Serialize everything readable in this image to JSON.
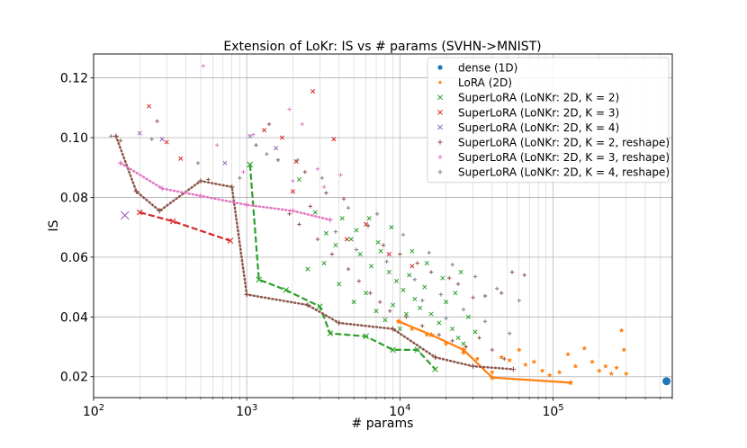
{
  "chart_data": {
    "type": "scatter",
    "title": "Extension of LoKr: IS vs # params (SVHN->MNIST)",
    "xlabel": "# params",
    "ylabel": "IS",
    "xscale": "log",
    "xlim": [
      100,
      600000
    ],
    "ylim": [
      0.013,
      0.128
    ],
    "grid": true,
    "legend_position": "top-right",
    "x_ticks": [
      {
        "value": 100,
        "label": "10^2"
      },
      {
        "value": 1000,
        "label": "10^3"
      },
      {
        "value": 10000,
        "label": "10^4"
      },
      {
        "value": 100000,
        "label": "10^5"
      }
    ],
    "y_ticks": [
      {
        "value": 0.02,
        "label": "0.02"
      },
      {
        "value": 0.04,
        "label": "0.04"
      },
      {
        "value": 0.06,
        "label": "0.06"
      },
      {
        "value": 0.08,
        "label": "0.08"
      },
      {
        "value": 0.1,
        "label": "0.10"
      },
      {
        "value": 0.12,
        "label": "0.12"
      }
    ],
    "series": [
      {
        "name": "dense (1D)",
        "color": "#1f77b4",
        "marker": "circle",
        "points": [
          [
            550000,
            0.0185
          ]
        ]
      },
      {
        "name": "LoRA (2D)",
        "color": "#ff7f0e",
        "marker": "star",
        "points": [
          [
            9800,
            0.0385
          ],
          [
            12000,
            0.036
          ],
          [
            15000,
            0.034
          ],
          [
            20000,
            0.031
          ],
          [
            26000,
            0.028
          ],
          [
            32000,
            0.026
          ],
          [
            40000,
            0.0215
          ],
          [
            46000,
            0.0265
          ],
          [
            52000,
            0.0255
          ],
          [
            60000,
            0.029
          ],
          [
            66000,
            0.024
          ],
          [
            75000,
            0.025
          ],
          [
            85000,
            0.022
          ],
          [
            95000,
            0.0205
          ],
          [
            110000,
            0.0215
          ],
          [
            125000,
            0.0275
          ],
          [
            140000,
            0.0235
          ],
          [
            160000,
            0.0295
          ],
          [
            180000,
            0.025
          ],
          [
            200000,
            0.022
          ],
          [
            220000,
            0.0235
          ],
          [
            240000,
            0.021
          ],
          [
            260000,
            0.023
          ],
          [
            280000,
            0.0355
          ],
          [
            290000,
            0.029
          ],
          [
            300000,
            0.021
          ]
        ],
        "frontier": [
          [
            9800,
            0.0385
          ],
          [
            16000,
            0.034
          ],
          [
            26000,
            0.029
          ],
          [
            40000,
            0.0197
          ],
          [
            130000,
            0.018
          ]
        ]
      },
      {
        "name": "SuperLoRA (LoNKr: 2D, K = 2)",
        "color": "#2ca02c",
        "marker": "x",
        "points": [
          [
            1050,
            0.091
          ],
          [
            1200,
            0.0525
          ],
          [
            1800,
            0.049
          ],
          [
            3000,
            0.0435
          ],
          [
            3500,
            0.0345
          ],
          [
            6000,
            0.0335
          ],
          [
            9000,
            0.029
          ],
          [
            13000,
            0.029
          ],
          [
            17000,
            0.0225
          ],
          [
            2200,
            0.086
          ],
          [
            2800,
            0.075
          ],
          [
            3300,
            0.068
          ],
          [
            4200,
            0.073
          ],
          [
            4800,
            0.066
          ],
          [
            5500,
            0.061
          ],
          [
            6500,
            0.057
          ],
          [
            7500,
            0.062
          ],
          [
            8500,
            0.055
          ],
          [
            9500,
            0.052
          ],
          [
            10500,
            0.049
          ],
          [
            11500,
            0.054
          ],
          [
            12500,
            0.046
          ],
          [
            13500,
            0.043
          ],
          [
            14500,
            0.05
          ],
          [
            16000,
            0.041
          ],
          [
            18000,
            0.038
          ],
          [
            20000,
            0.045
          ],
          [
            22000,
            0.036
          ],
          [
            24000,
            0.033
          ],
          [
            26000,
            0.031
          ],
          [
            28000,
            0.04
          ],
          [
            31000,
            0.035
          ],
          [
            4000,
            0.051
          ],
          [
            5000,
            0.045
          ],
          [
            6000,
            0.048
          ],
          [
            7000,
            0.042
          ],
          [
            8000,
            0.039
          ],
          [
            9000,
            0.044
          ],
          [
            10000,
            0.036
          ],
          [
            11000,
            0.041
          ],
          [
            2500,
            0.056
          ],
          [
            3200,
            0.058
          ],
          [
            3800,
            0.064
          ],
          [
            5200,
            0.069
          ],
          [
            6300,
            0.073
          ],
          [
            7200,
            0.065
          ],
          [
            15000,
            0.058
          ],
          [
            19000,
            0.053
          ],
          [
            23000,
            0.048
          ],
          [
            25000,
            0.055
          ],
          [
            12000,
            0.062
          ],
          [
            8800,
            0.07
          ]
        ],
        "frontier": [
          [
            1050,
            0.091
          ],
          [
            1200,
            0.0525
          ],
          [
            1800,
            0.049
          ],
          [
            3000,
            0.0435
          ],
          [
            3500,
            0.0345
          ],
          [
            6000,
            0.0335
          ],
          [
            9000,
            0.029
          ],
          [
            13000,
            0.029
          ],
          [
            17000,
            0.0225
          ]
        ]
      },
      {
        "name": "SuperLoRA (LoNKr: 2D, K = 3)",
        "color": "#d62728",
        "marker": "x",
        "points": [
          [
            200,
            0.075
          ],
          [
            330,
            0.072
          ],
          [
            780,
            0.0655
          ],
          [
            230,
            0.1105
          ],
          [
            300,
            0.0985
          ],
          [
            370,
            0.093
          ],
          [
            1300,
            0.1025
          ],
          [
            1700,
            0.1
          ],
          [
            2100,
            0.092
          ],
          [
            2700,
            0.1155
          ],
          [
            3700,
            0.0995
          ],
          [
            2000,
            0.082
          ],
          [
            6000,
            0.071
          ],
          [
            4500,
            0.066
          ],
          [
            8500,
            0.061
          ],
          [
            12000,
            0.057
          ]
        ],
        "frontier": [
          [
            200,
            0.075
          ],
          [
            330,
            0.072
          ],
          [
            780,
            0.0655
          ]
        ]
      },
      {
        "name": "SuperLoRA (LoNKr: 2D, K = 4)",
        "color": "#9467bd",
        "marker": "x",
        "points": [
          [
            160,
            0.074
          ],
          [
            200,
            0.1015
          ],
          [
            280,
            0.0995
          ],
          [
            720,
            0.0915
          ],
          [
            1050,
            0.1005
          ],
          [
            1550,
            0.0965
          ]
        ]
      },
      {
        "name": "SuperLoRA (LoNKr: 2D, K = 2, reshape)",
        "color": "#8c564b",
        "marker": "plus",
        "points": [
          [
            140,
            0.1005
          ],
          [
            190,
            0.082
          ],
          [
            270,
            0.0755
          ],
          [
            500,
            0.0855
          ],
          [
            800,
            0.0835
          ],
          [
            1000,
            0.0475
          ],
          [
            2500,
            0.044
          ],
          [
            4000,
            0.038
          ],
          [
            9000,
            0.036
          ],
          [
            17000,
            0.0265
          ],
          [
            30000,
            0.0235
          ],
          [
            55000,
            0.0225
          ],
          [
            150,
            0.099
          ],
          [
            260,
            0.1055
          ],
          [
            560,
            0.086
          ],
          [
            1150,
            0.0975
          ],
          [
            1600,
            0.0925
          ],
          [
            2400,
            0.0885
          ],
          [
            3300,
            0.0815
          ],
          [
            4300,
            0.0795
          ],
          [
            6200,
            0.0705
          ],
          [
            7800,
            0.064
          ],
          [
            10000,
            0.061
          ],
          [
            13000,
            0.058
          ],
          [
            16000,
            0.055
          ],
          [
            21000,
            0.053
          ],
          [
            24000,
            0.051
          ],
          [
            30000,
            0.0465
          ],
          [
            36000,
            0.047
          ],
          [
            46000,
            0.048
          ],
          [
            54000,
            0.055
          ],
          [
            65000,
            0.054
          ],
          [
            2200,
            0.071
          ],
          [
            2900,
            0.066
          ],
          [
            3600,
            0.061
          ],
          [
            4600,
            0.056
          ],
          [
            5400,
            0.052
          ],
          [
            6400,
            0.048
          ],
          [
            7400,
            0.045
          ],
          [
            8600,
            0.042
          ],
          [
            11000,
            0.04
          ],
          [
            14000,
            0.037
          ],
          [
            18000,
            0.034
          ],
          [
            22000,
            0.032
          ],
          [
            27000,
            0.03
          ],
          [
            33000,
            0.033
          ],
          [
            40000,
            0.029
          ],
          [
            48000,
            0.026
          ],
          [
            1400,
            0.1045
          ],
          [
            1900,
            0.0745
          ],
          [
            2600,
            0.077
          ]
        ],
        "frontier": [
          [
            140,
            0.1005
          ],
          [
            190,
            0.082
          ],
          [
            270,
            0.0755
          ],
          [
            500,
            0.0855
          ],
          [
            800,
            0.0835
          ],
          [
            1000,
            0.0475
          ],
          [
            2500,
            0.044
          ],
          [
            4000,
            0.038
          ],
          [
            9000,
            0.036
          ],
          [
            17000,
            0.0265
          ],
          [
            30000,
            0.0235
          ],
          [
            55000,
            0.0225
          ]
        ]
      },
      {
        "name": "SuperLoRA (LoNKr: 2D, K = 3, reshape)",
        "color": "#e377c2",
        "marker": "plus",
        "points": [
          [
            150,
            0.0915
          ],
          [
            280,
            0.083
          ],
          [
            500,
            0.0805
          ],
          [
            1000,
            0.0775
          ],
          [
            2000,
            0.0755
          ],
          [
            3500,
            0.0725
          ],
          [
            520,
            0.124
          ],
          [
            640,
            0.0975
          ],
          [
            950,
            0.0885
          ],
          [
            1100,
            0.101
          ],
          [
            1900,
            0.1095
          ],
          [
            2300,
            0.1045
          ],
          [
            2900,
            0.0895
          ],
          [
            4100,
            0.0875
          ],
          [
            3200,
            0.0835
          ],
          [
            2000,
            0.0855
          ]
        ],
        "frontier": [
          [
            150,
            0.0915
          ],
          [
            280,
            0.083
          ],
          [
            500,
            0.0805
          ],
          [
            1000,
            0.0775
          ],
          [
            2000,
            0.0755
          ],
          [
            3500,
            0.0725
          ]
        ]
      },
      {
        "name": "SuperLoRA (LoNKr: 2D, K = 4, reshape)",
        "color": "#7f7f7f",
        "marker": "plus",
        "points": [
          [
            130,
            0.1005
          ],
          [
            240,
            0.0995
          ],
          [
            480,
            0.0915
          ],
          [
            900,
            0.0865
          ],
          [
            1350,
            0.0945
          ],
          [
            2150,
            0.0925
          ],
          [
            3100,
            0.0865
          ],
          [
            4600,
            0.0765
          ],
          [
            7100,
            0.0745
          ],
          [
            10500,
            0.0675
          ],
          [
            15500,
            0.0615
          ],
          [
            22000,
            0.0575
          ],
          [
            31000,
            0.0535
          ],
          [
            43000,
            0.0495
          ],
          [
            60000,
            0.0455
          ],
          [
            8200,
            0.0585
          ],
          [
            12500,
            0.0525
          ],
          [
            18500,
            0.0475
          ],
          [
            26000,
            0.0425
          ],
          [
            36000,
            0.0385
          ],
          [
            52000,
            0.0345
          ],
          [
            5200,
            0.0625
          ],
          [
            3800,
            0.0685
          ],
          [
            14000,
            0.0455
          ],
          [
            20000,
            0.0395
          ]
        ]
      }
    ]
  }
}
